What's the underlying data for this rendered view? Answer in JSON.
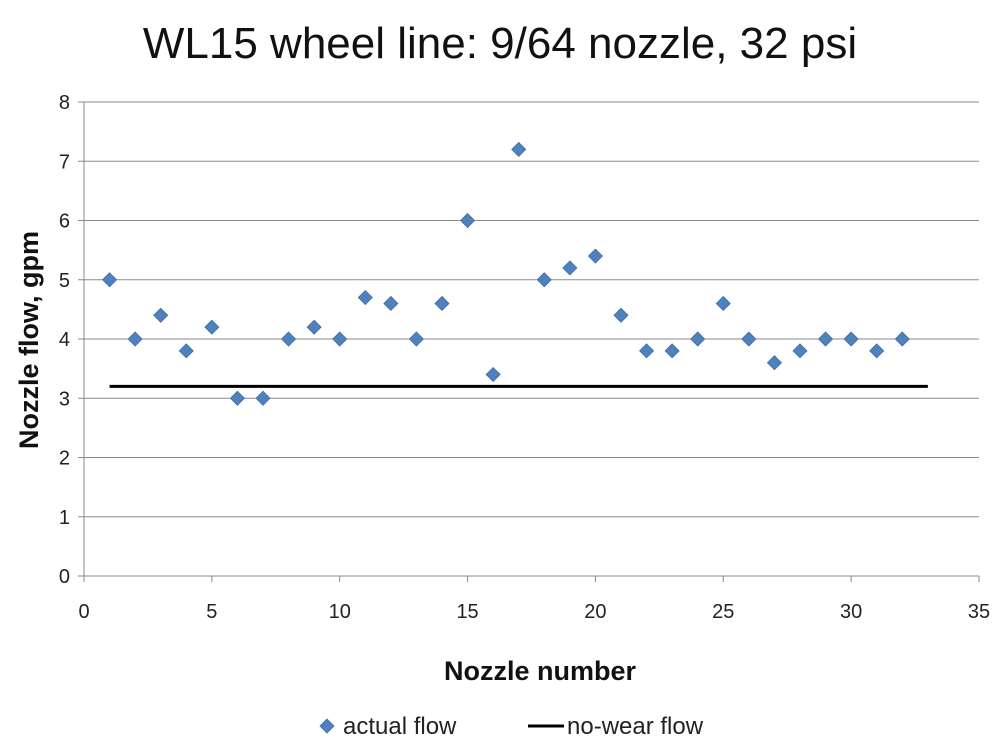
{
  "chart_data": {
    "type": "scatter",
    "title": "WL15 wheel line: 9/64 nozzle, 32 psi",
    "xlabel": "Nozzle number",
    "ylabel": "Nozzle flow, gpm",
    "xlim": [
      0,
      35
    ],
    "ylim": [
      0,
      8
    ],
    "xticks": [
      0,
      5,
      10,
      15,
      20,
      25,
      30,
      35
    ],
    "yticks": [
      0,
      1,
      2,
      3,
      4,
      5,
      6,
      7,
      8
    ],
    "grid": "horizontal",
    "legend_position": "bottom",
    "series": [
      {
        "name": "actual flow",
        "kind": "markers",
        "marker": "diamond",
        "color": "#4F81BD",
        "x": [
          1,
          2,
          3,
          4,
          5,
          6,
          7,
          8,
          9,
          10,
          11,
          12,
          13,
          14,
          15,
          16,
          17,
          18,
          19,
          20,
          21,
          22,
          23,
          24,
          25,
          26,
          27,
          28,
          29,
          30,
          31,
          32
        ],
        "y": [
          5.0,
          4.0,
          4.4,
          3.8,
          4.2,
          3.0,
          3.0,
          4.0,
          4.2,
          4.0,
          4.7,
          4.6,
          4.0,
          4.6,
          6.0,
          3.4,
          7.2,
          5.0,
          5.2,
          5.4,
          4.4,
          3.8,
          3.8,
          4.0,
          4.6,
          4.0,
          3.6,
          3.8,
          4.0,
          4.0,
          3.8,
          4.0
        ]
      },
      {
        "name": "no-wear flow",
        "kind": "line",
        "color": "#000000",
        "x": [
          1,
          33
        ],
        "y": [
          3.2,
          3.2
        ]
      }
    ]
  }
}
